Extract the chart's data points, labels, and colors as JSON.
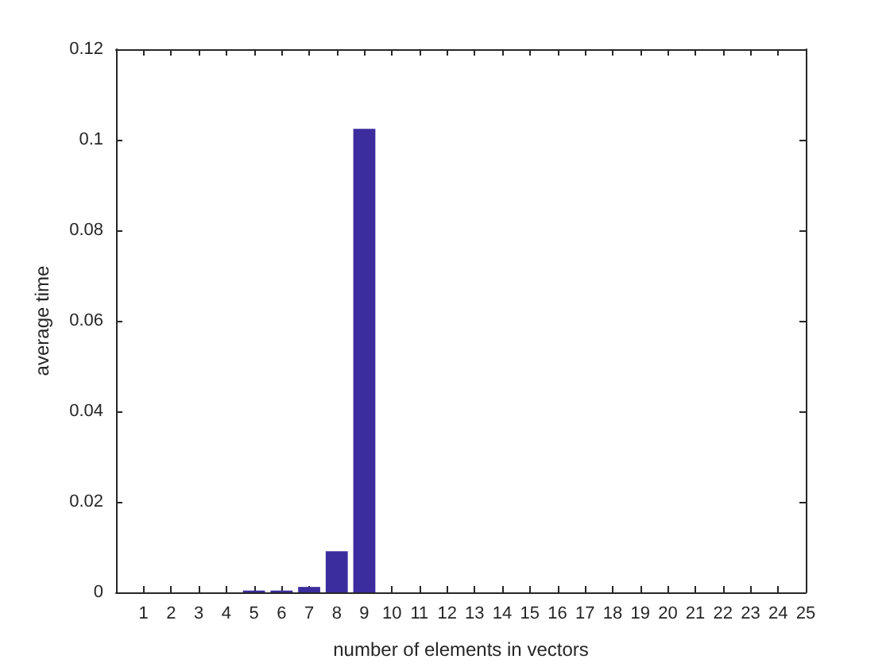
{
  "chart_data": {
    "type": "bar",
    "xlabel": "number of elements in vectors",
    "ylabel": "average time",
    "x": [
      1,
      2,
      3,
      4,
      5,
      6,
      7,
      8,
      9,
      10,
      11,
      12,
      13,
      14,
      15,
      16,
      17,
      18,
      19,
      20,
      21,
      22,
      23,
      24,
      25
    ],
    "values": [
      0,
      0,
      0,
      0,
      0.0004,
      0.0004,
      0.0012,
      0.0091,
      0.1024,
      0,
      0,
      0,
      0,
      0,
      0,
      0,
      0,
      0,
      0,
      0,
      0,
      0,
      0,
      0,
      0
    ],
    "color": "#3c2d9e",
    "xlim": [
      0,
      25
    ],
    "xticks": [
      1,
      2,
      3,
      4,
      5,
      6,
      7,
      8,
      9,
      10,
      11,
      12,
      13,
      14,
      15,
      16,
      17,
      18,
      19,
      20,
      21,
      22,
      23,
      24,
      25
    ],
    "ylim": [
      0,
      0.12
    ],
    "yticks": [
      0,
      0.02,
      0.04,
      0.06,
      0.08,
      0.1,
      0.12
    ],
    "grid": false
  }
}
